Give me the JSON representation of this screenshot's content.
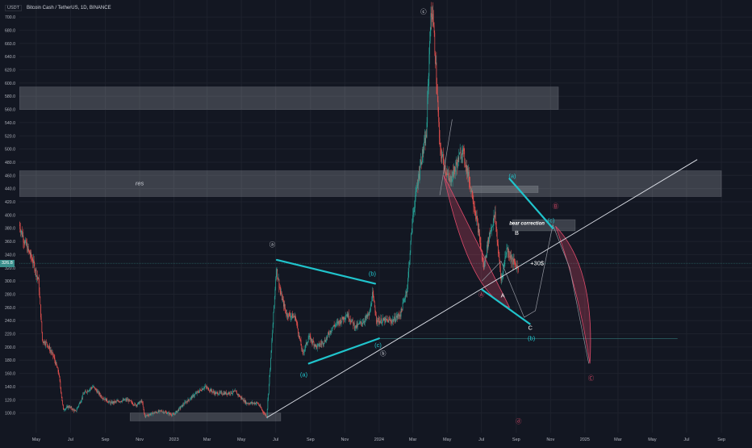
{
  "header": {
    "currency": "USDT",
    "symbol": "Bitcoin Cash / TetherUS, 1D, BINANCE"
  },
  "current_price_label": "326.8",
  "colors": {
    "background": "#131722",
    "candle_up": "#26a69a",
    "candle_down": "#ef5350",
    "cyan_lines": "#20c4cc",
    "zones": "#d1d4dc",
    "trendline": "#e0e3eb",
    "bear_arc": "#e04a6a",
    "axis_text": "#b2b5be",
    "grid": "#1e222d"
  },
  "chart_data": {
    "type": "candlestick",
    "title": "Bitcoin Cash / TetherUS, 1D, BINANCE",
    "y_ticks": [
      100,
      120,
      140,
      160,
      180,
      200,
      220,
      240,
      260,
      280,
      300,
      320,
      340,
      360,
      380,
      400,
      420,
      440,
      460,
      480,
      500,
      520,
      540,
      560,
      580,
      600,
      620,
      640,
      660,
      680,
      700
    ],
    "ylim": [
      80,
      716
    ],
    "x_ticks": [
      "May",
      "Jul",
      "Sep",
      "Nov",
      "2023",
      "Mar",
      "May",
      "Jul",
      "Sep",
      "Nov",
      "2024",
      "Mar",
      "May",
      "Jul",
      "Sep",
      "Nov",
      "2025",
      "Mar",
      "May",
      "Jul",
      "Sep"
    ],
    "x_tick_dates": [
      "2022-05-01",
      "2022-07-01",
      "2022-09-01",
      "2022-11-01",
      "2023-01-01",
      "2023-03-01",
      "2023-05-01",
      "2023-07-01",
      "2023-09-01",
      "2023-11-01",
      "2024-01-01",
      "2024-03-01",
      "2024-05-01",
      "2024-07-01",
      "2024-09-01",
      "2024-11-01",
      "2025-01-01",
      "2025-03-01",
      "2025-05-01",
      "2025-07-01",
      "2025-09-01"
    ],
    "price_path": [
      [
        "2022-04-01",
        385
      ],
      [
        "2022-04-10",
        360
      ],
      [
        "2022-04-25",
        330
      ],
      [
        "2022-05-05",
        300
      ],
      [
        "2022-05-12",
        210
      ],
      [
        "2022-05-20",
        205
      ],
      [
        "2022-06-01",
        185
      ],
      [
        "2022-06-10",
        160
      ],
      [
        "2022-06-18",
        105
      ],
      [
        "2022-06-28",
        110
      ],
      [
        "2022-07-10",
        102
      ],
      [
        "2022-07-25",
        130
      ],
      [
        "2022-08-10",
        140
      ],
      [
        "2022-08-25",
        125
      ],
      [
        "2022-09-10",
        115
      ],
      [
        "2022-09-25",
        118
      ],
      [
        "2022-10-10",
        120
      ],
      [
        "2022-10-25",
        112
      ],
      [
        "2022-11-05",
        118
      ],
      [
        "2022-11-10",
        95
      ],
      [
        "2022-11-25",
        100
      ],
      [
        "2022-12-10",
        103
      ],
      [
        "2022-12-31",
        97
      ],
      [
        "2023-01-20",
        115
      ],
      [
        "2023-02-10",
        130
      ],
      [
        "2023-02-25",
        140
      ],
      [
        "2023-03-15",
        130
      ],
      [
        "2023-04-05",
        130
      ],
      [
        "2023-04-20",
        132
      ],
      [
        "2023-05-10",
        115
      ],
      [
        "2023-05-30",
        115
      ],
      [
        "2023-06-10",
        100
      ],
      [
        "2023-06-15",
        95
      ],
      [
        "2023-06-22",
        180
      ],
      [
        "2023-06-30",
        290
      ],
      [
        "2023-07-02",
        320
      ],
      [
        "2023-07-10",
        280
      ],
      [
        "2023-07-20",
        250
      ],
      [
        "2023-08-05",
        245
      ],
      [
        "2023-08-18",
        190
      ],
      [
        "2023-08-29",
        215
      ],
      [
        "2023-09-12",
        200
      ],
      [
        "2023-09-27",
        210
      ],
      [
        "2023-10-10",
        230
      ],
      [
        "2023-10-25",
        240
      ],
      [
        "2023-11-05",
        250
      ],
      [
        "2023-11-20",
        230
      ],
      [
        "2023-12-05",
        240
      ],
      [
        "2023-12-15",
        250
      ],
      [
        "2023-12-20",
        280
      ],
      [
        "2023-12-28",
        240
      ],
      [
        "2024-01-10",
        240
      ],
      [
        "2024-01-25",
        240
      ],
      [
        "2024-02-08",
        250
      ],
      [
        "2024-02-20",
        290
      ],
      [
        "2024-03-01",
        400
      ],
      [
        "2024-03-08",
        440
      ],
      [
        "2024-03-15",
        480
      ],
      [
        "2024-03-25",
        520
      ],
      [
        "2024-04-01",
        690
      ],
      [
        "2024-04-05",
        710
      ],
      [
        "2024-04-10",
        640
      ],
      [
        "2024-04-18",
        500
      ],
      [
        "2024-04-25",
        480
      ],
      [
        "2024-05-05",
        450
      ],
      [
        "2024-05-15",
        470
      ],
      [
        "2024-05-28",
        500
      ],
      [
        "2024-06-05",
        470
      ],
      [
        "2024-06-15",
        430
      ],
      [
        "2024-06-25",
        380
      ],
      [
        "2024-07-05",
        320
      ],
      [
        "2024-07-15",
        370
      ],
      [
        "2024-07-25",
        400
      ],
      [
        "2024-08-05",
        300
      ],
      [
        "2024-08-15",
        350
      ],
      [
        "2024-08-25",
        330
      ],
      [
        "2024-09-05",
        320
      ]
    ],
    "horizontal_zones": [
      {
        "x0": "2022-04-01",
        "x1": "2024-11-15",
        "y0": 560,
        "y1": 594
      },
      {
        "x0": "2022-04-01",
        "x1": "2025-09-01",
        "y0": 428,
        "y1": 467
      },
      {
        "x0": "2024-06-15",
        "x1": "2024-10-10",
        "y0": 434,
        "y1": 444
      },
      {
        "x0": "2024-08-25",
        "x1": "2024-12-15",
        "y0": 376,
        "y1": 393
      },
      {
        "x0": "2022-10-15",
        "x1": "2023-07-10",
        "y0": 88,
        "y1": 100
      }
    ],
    "trendline": [
      [
        "2023-06-15",
        93
      ],
      [
        "2025-07-20",
        484
      ]
    ],
    "cyan_lines": [
      [
        [
          "2023-07-03",
          332
        ],
        [
          "2023-12-25",
          296
        ]
      ],
      [
        [
          "2023-08-29",
          175
        ],
        [
          "2024-01-01",
          213
        ]
      ],
      [
        [
          "2024-07-02",
          287
        ],
        [
          "2024-09-25",
          235
        ]
      ],
      [
        [
          "2024-08-20",
          455
        ],
        [
          "2024-11-05",
          380
        ]
      ]
    ],
    "support_line": {
      "y": 213,
      "x0": "2024-01-01",
      "x1": "2025-06-15"
    },
    "current_price": 326.8,
    "annotations": [
      {
        "text": "res",
        "date": "2022-11-01",
        "y": 445,
        "color": "#d1d4dc",
        "italic": true
      },
      {
        "text": "ⓐ",
        "date": "2023-06-25",
        "y": 352,
        "color": "#e0e3eb"
      },
      {
        "text": "(b)",
        "date": "2023-12-20",
        "y": 308,
        "color": "#20c4cc"
      },
      {
        "text": "(a)",
        "date": "2023-08-20",
        "y": 155,
        "color": "#20c4cc"
      },
      {
        "text": "(c)",
        "date": "2023-12-30",
        "y": 200,
        "color": "#20c4cc"
      },
      {
        "text": "ⓑ",
        "date": "2024-01-08",
        "y": 187,
        "color": "#e0e3eb"
      },
      {
        "text": "ⓒ",
        "date": "2024-03-20",
        "y": 705,
        "color": "#e0e3eb"
      },
      {
        "text": "(a)",
        "date": "2024-08-25",
        "y": 456,
        "color": "#20c4cc"
      },
      {
        "text": "Ⓑ",
        "date": "2024-11-10",
        "y": 410,
        "color": "#e04a6a"
      },
      {
        "text": "(c)",
        "date": "2024-11-02",
        "y": 389,
        "color": "#20c4cc"
      },
      {
        "text": "bear correction",
        "date": "2024-09-20",
        "y": 385,
        "color": "#ffffff",
        "italic": true,
        "bold": true
      },
      {
        "text": "B",
        "date": "2024-09-02",
        "y": 370,
        "color": "#ffffff"
      },
      {
        "text": "+30$",
        "date": "2024-10-08",
        "y": 324,
        "color": "#ffffff"
      },
      {
        "text": "Ⓐ",
        "date": "2024-07-01",
        "y": 276,
        "color": "#e04a6a"
      },
      {
        "text": "A",
        "date": "2024-08-08",
        "y": 275,
        "color": "#ffffff"
      },
      {
        "text": "C",
        "date": "2024-09-26",
        "y": 226,
        "color": "#ffffff"
      },
      {
        "text": "(b)",
        "date": "2024-09-28",
        "y": 210,
        "color": "#20c4cc"
      },
      {
        "text": "Ⓒ",
        "date": "2025-01-12",
        "y": 150,
        "color": "#e04a6a"
      },
      {
        "text": "ⓓ",
        "date": "2024-09-05",
        "y": 84,
        "color": "#e04a6a"
      }
    ]
  }
}
